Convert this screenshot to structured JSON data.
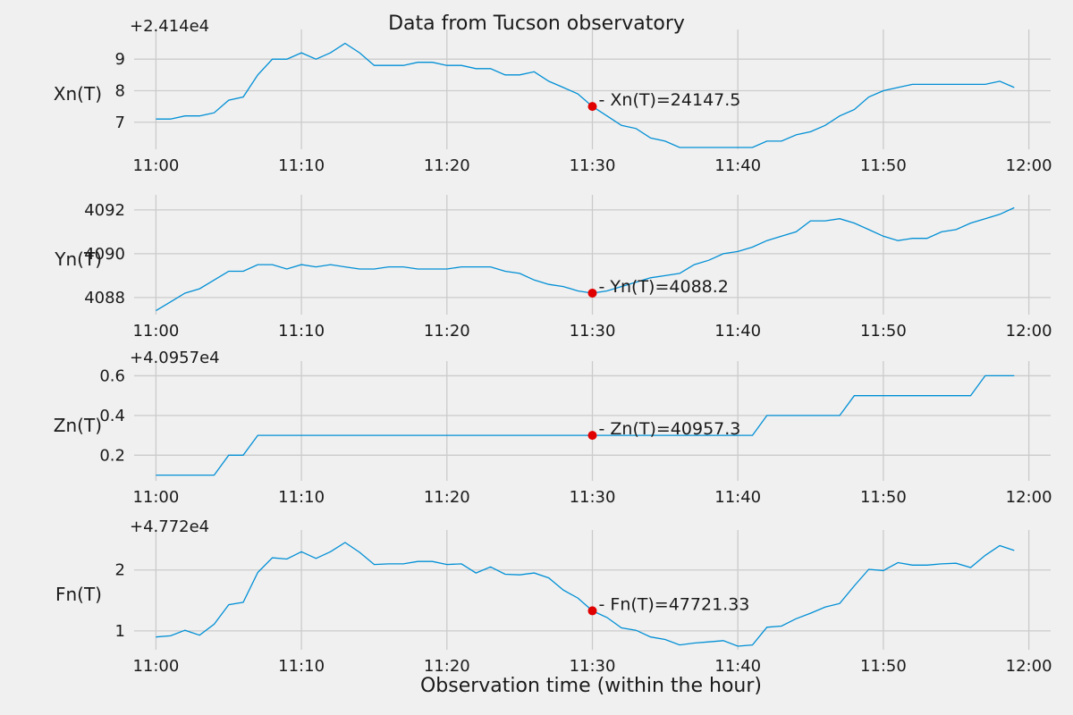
{
  "chart_data": {
    "title": "Data from  Tucson observatory",
    "xlabel": "Observation time (within the hour)",
    "x_ticks": [
      "11:00",
      "11:10",
      "11:20",
      "11:30",
      "11:40",
      "11:50",
      "12:00"
    ],
    "x_minutes": [
      0,
      1,
      2,
      3,
      4,
      5,
      6,
      7,
      8,
      9,
      10,
      11,
      12,
      13,
      14,
      15,
      16,
      17,
      18,
      19,
      20,
      21,
      22,
      23,
      24,
      25,
      26,
      27,
      28,
      29,
      30,
      31,
      32,
      33,
      34,
      35,
      36,
      37,
      38,
      39,
      40,
      41,
      42,
      43,
      44,
      45,
      46,
      47,
      48,
      49,
      50,
      51,
      52,
      53,
      54,
      55,
      56,
      57,
      58,
      59
    ],
    "line_color": "#008fd5",
    "marker_color": "#e00000",
    "marker_minute": 30,
    "panels": [
      {
        "type": "line",
        "name": "Xn(T)",
        "ylabel": "Xn(T)",
        "offset_label": "+2.414e4",
        "offset": 24140,
        "ylim": [
          6.2,
          9.6
        ],
        "yticks": [
          7,
          8,
          9
        ],
        "ytick_labels": [
          "7",
          "8",
          "9"
        ],
        "annotation": "- Xn(T)=24147.5",
        "marker_value": 7.5,
        "values": [
          7.1,
          7.1,
          7.2,
          7.2,
          7.3,
          7.7,
          7.8,
          8.5,
          9.0,
          9.0,
          9.2,
          9.0,
          9.2,
          9.5,
          9.2,
          8.8,
          8.8,
          8.8,
          8.9,
          8.9,
          8.8,
          8.8,
          8.7,
          8.7,
          8.5,
          8.5,
          8.6,
          8.3,
          8.1,
          7.9,
          7.5,
          7.2,
          6.9,
          6.8,
          6.5,
          6.4,
          6.2,
          6.2,
          6.2,
          6.2,
          6.2,
          6.2,
          6.4,
          6.4,
          6.6,
          6.7,
          6.9,
          7.2,
          7.4,
          7.8,
          8.0,
          8.1,
          8.2,
          8.2,
          8.2,
          8.2,
          8.2,
          8.2,
          8.3,
          8.1
        ]
      },
      {
        "type": "line",
        "name": "Yn(T)",
        "ylabel": "Yn(T)",
        "offset_label": "",
        "offset": 0,
        "ylim": [
          4087.3,
          4092.2
        ],
        "yticks": [
          4088,
          4090,
          4092
        ],
        "ytick_labels": [
          "4088",
          "4090",
          "4092"
        ],
        "annotation": "- Yn(T)=4088.2",
        "marker_value": 4088.2,
        "values": [
          4087.4,
          4087.8,
          4088.2,
          4088.4,
          4088.8,
          4089.2,
          4089.2,
          4089.5,
          4089.5,
          4089.3,
          4089.5,
          4089.4,
          4089.5,
          4089.4,
          4089.3,
          4089.3,
          4089.4,
          4089.4,
          4089.3,
          4089.3,
          4089.3,
          4089.4,
          4089.4,
          4089.4,
          4089.2,
          4089.1,
          4088.8,
          4088.6,
          4088.5,
          4088.3,
          4088.2,
          4088.3,
          4088.5,
          4088.7,
          4088.9,
          4089.0,
          4089.1,
          4089.5,
          4089.7,
          4090.0,
          4090.1,
          4090.3,
          4090.6,
          4090.8,
          4091.0,
          4091.5,
          4091.5,
          4091.6,
          4091.4,
          4091.1,
          4090.8,
          4090.6,
          4090.7,
          4090.7,
          4091.0,
          4091.1,
          4091.4,
          4091.6,
          4091.8,
          4092.1
        ]
      },
      {
        "type": "line",
        "name": "Zn(T)",
        "ylabel": "Zn(T)",
        "offset_label": "+4.0957e4",
        "offset": 40957,
        "ylim": [
          0.08,
          0.62
        ],
        "yticks": [
          0.2,
          0.4,
          0.6
        ],
        "ytick_labels": [
          "0.2",
          "0.4",
          "0.6"
        ],
        "annotation": "- Zn(T)=40957.3",
        "marker_value": 0.3,
        "values": [
          0.1,
          0.1,
          0.1,
          0.1,
          0.1,
          0.2,
          0.2,
          0.3,
          0.3,
          0.3,
          0.3,
          0.3,
          0.3,
          0.3,
          0.3,
          0.3,
          0.3,
          0.3,
          0.3,
          0.3,
          0.3,
          0.3,
          0.3,
          0.3,
          0.3,
          0.3,
          0.3,
          0.3,
          0.3,
          0.3,
          0.3,
          0.3,
          0.3,
          0.3,
          0.3,
          0.3,
          0.3,
          0.3,
          0.3,
          0.3,
          0.3,
          0.3,
          0.4,
          0.4,
          0.4,
          0.4,
          0.4,
          0.4,
          0.5,
          0.5,
          0.5,
          0.5,
          0.5,
          0.5,
          0.5,
          0.5,
          0.5,
          0.6,
          0.6,
          0.6
        ]
      },
      {
        "type": "line",
        "name": "Fn(T)",
        "ylabel": "Fn(T)",
        "offset_label": "+4.772e4",
        "offset": 47720,
        "ylim": [
          0.72,
          2.48
        ],
        "yticks": [
          1,
          2
        ],
        "ytick_labels": [
          "1",
          "2"
        ],
        "annotation": "- Fn(T)=47721.33",
        "marker_value": 1.33,
        "values": [
          0.9,
          0.92,
          1.01,
          0.93,
          1.11,
          1.43,
          1.47,
          1.96,
          2.2,
          2.18,
          2.3,
          2.19,
          2.3,
          2.45,
          2.29,
          2.09,
          2.1,
          2.1,
          2.14,
          2.14,
          2.09,
          2.1,
          1.95,
          2.05,
          1.93,
          1.92,
          1.95,
          1.87,
          1.67,
          1.54,
          1.33,
          1.22,
          1.05,
          1.01,
          0.9,
          0.86,
          0.77,
          0.8,
          0.82,
          0.84,
          0.75,
          0.77,
          1.06,
          1.08,
          1.2,
          1.29,
          1.39,
          1.45,
          1.74,
          2.01,
          1.99,
          2.12,
          2.08,
          2.08,
          2.1,
          2.11,
          2.04,
          2.24,
          2.4,
          2.32
        ]
      }
    ]
  }
}
